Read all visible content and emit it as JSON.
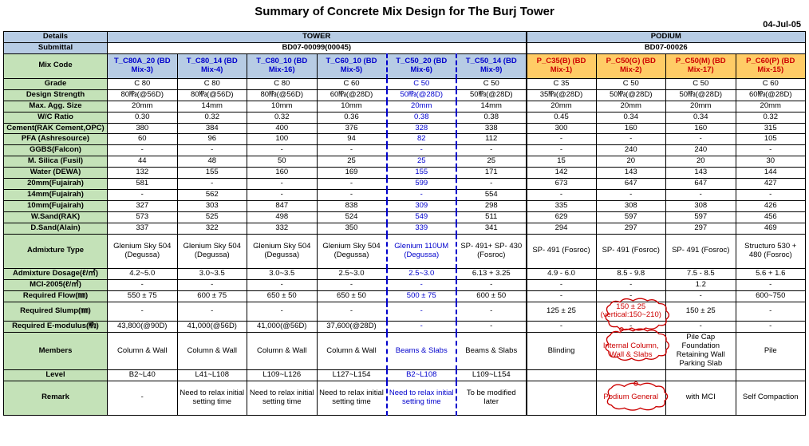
{
  "title": "Summary of Concrete Mix Design for The Burj Tower",
  "date": "04-Jul-05",
  "headers": {
    "details": "Details",
    "tower": "TOWER",
    "podium": "PODIUM",
    "submittal": "Submittal",
    "bd_tower": "BD07-00099(00045)",
    "bd_podium": "BD07-00026",
    "mixcode": "Mix Code"
  },
  "mix": {
    "c0": "T_C80A_20 (BD Mix-3)",
    "c1": "T_C80_14 (BD Mix-4)",
    "c2": "T_C80_10 (BD Mix-16)",
    "c3": "T_C60_10 (BD Mix-5)",
    "c4": "T_C50_20 (BD Mix-6)",
    "c5": "T_C50_14 (BD Mix-9)",
    "c6": "P_C35(B) (BD Mix-1)",
    "c7": "P_C50(G) (BD Mix-2)",
    "c8": "P_C50(M) (BD Mix-17)",
    "c9": "P_C60(P) (BD Mix-15)"
  },
  "rows": {
    "grade": {
      "l": "Grade",
      "v": [
        "C 80",
        "C 80",
        "C 80",
        "C 60",
        "C 50",
        "C 50",
        "C 35",
        "C 50",
        "C 50",
        "C 60"
      ]
    },
    "ds": {
      "l": "Design Strength",
      "v": [
        "80㎫(@56D)",
        "80㎫(@56D)",
        "80㎫(@56D)",
        "60㎫(@28D)",
        "50㎫(@28D)",
        "50㎫(@28D)",
        "35㎫(@28D)",
        "50㎫(@28D)",
        "50㎫(@28D)",
        "60㎫(@28D)"
      ]
    },
    "agg": {
      "l": "Max. Agg. Size",
      "v": [
        "20mm",
        "14mm",
        "10mm",
        "10mm",
        "20mm",
        "14mm",
        "20mm",
        "20mm",
        "20mm",
        "20mm"
      ]
    },
    "wc": {
      "l": "W/C Ratio",
      "v": [
        "0.30",
        "0.32",
        "0.32",
        "0.36",
        "0.38",
        "0.38",
        "0.45",
        "0.34",
        "0.34",
        "0.32"
      ]
    },
    "cem": {
      "l": "Cement(RAK Cement,OPC)",
      "v": [
        "380",
        "384",
        "400",
        "376",
        "328",
        "338",
        "300",
        "160",
        "160",
        "315"
      ]
    },
    "pfa": {
      "l": "PFA (Ashresource)",
      "v": [
        "60",
        "96",
        "100",
        "94",
        "82",
        "112",
        "-",
        "-",
        "-",
        "105"
      ]
    },
    "ggbs": {
      "l": "GGBS(Falcon)",
      "v": [
        "-",
        "-",
        "-",
        "-",
        "-",
        "-",
        "-",
        "240",
        "240",
        "-"
      ]
    },
    "ms": {
      "l": "M. Silica (Fusil)",
      "v": [
        "44",
        "48",
        "50",
        "25",
        "25",
        "25",
        "15",
        "20",
        "20",
        "30"
      ]
    },
    "water": {
      "l": "Water (DEWA)",
      "v": [
        "132",
        "155",
        "160",
        "169",
        "155",
        "171",
        "142",
        "143",
        "143",
        "144"
      ]
    },
    "a20": {
      "l": "20mm(Fujairah)",
      "v": [
        "581",
        "-",
        "-",
        "-",
        "599",
        "-",
        "673",
        "647",
        "647",
        "427"
      ]
    },
    "a14": {
      "l": "14mm(Fujairah)",
      "v": [
        "-",
        "562",
        "-",
        "-",
        "-",
        "554",
        "-",
        "-",
        "-",
        "-"
      ]
    },
    "a10": {
      "l": "10mm(Fujairah)",
      "v": [
        "327",
        "303",
        "847",
        "838",
        "309",
        "298",
        "335",
        "308",
        "308",
        "426"
      ]
    },
    "ws": {
      "l": "W.Sand(RAK)",
      "v": [
        "573",
        "525",
        "498",
        "524",
        "549",
        "511",
        "629",
        "597",
        "597",
        "456"
      ]
    },
    "dsand": {
      "l": "D.Sand(Alain)",
      "v": [
        "337",
        "322",
        "332",
        "350",
        "339",
        "341",
        "294",
        "297",
        "297",
        "469"
      ]
    },
    "adt": {
      "l": "Admixture Type",
      "v": [
        "Glenium Sky 504 (Degussa)",
        "Glenium Sky 504 (Degussa)",
        "Glenium Sky 504 (Degussa)",
        "Glenium Sky 504 (Degussa)",
        "Glenium 110UM (Degussa)",
        "SP- 491+ SP- 430 (Fosroc)",
        "SP- 491 (Fosroc)",
        "SP- 491 (Fosroc)",
        "SP- 491 (Fosroc)",
        "Structuro 530 + 480 (Fosroc)"
      ]
    },
    "add": {
      "l": "Admixture Dosage(ℓ/㎥)",
      "v": [
        "4.2~5.0",
        "3.0~3.5",
        "3.0~3.5",
        "2.5~3.0",
        "2.5~3.0",
        "6.13 + 3.25",
        "4.9 - 6.0",
        "8.5 - 9.8",
        "7.5 - 8.5",
        "5.6 + 1.6"
      ]
    },
    "mci": {
      "l": "MCI-2005(ℓ/㎥)",
      "v": [
        "-",
        "-",
        "-",
        "-",
        "-",
        "-",
        "-",
        "-",
        "1.2",
        "-"
      ]
    },
    "rf": {
      "l": "Required Flow(㎜)",
      "v": [
        "550 ± 75",
        "600 ± 75",
        "650 ± 50",
        "650 ± 50",
        "500 ± 75",
        "600 ± 50",
        "-",
        "-",
        "-",
        "600~750"
      ]
    },
    "rs": {
      "l": "Required Slump(㎜)",
      "v": [
        "-",
        "-",
        "-",
        "-",
        "-",
        "-",
        "125 ± 25",
        "150 ± 25 (vertical:150~210)",
        "150 ± 25",
        "-"
      ]
    },
    "rem": {
      "l": "Required E-modulus(㎫)",
      "v": [
        "43,800(@90D)",
        "41,000(@56D)",
        "41,000(@56D)",
        "37,600(@28D)",
        "-",
        "-",
        "-",
        "-",
        "-",
        "-"
      ]
    },
    "mem": {
      "l": "Members",
      "v": [
        "Column & Wall",
        "Column & Wall",
        "Column & Wall",
        "Column & Wall",
        "Beams & Slabs",
        "Beams & Slabs",
        "Blinding",
        "Internal Column, Wall & Slabs",
        "Pile Cap Foundation Retaining Wall Parking Slab",
        "Pile"
      ]
    },
    "lvl": {
      "l": "Level",
      "v": [
        "B2~L40",
        "L41~L108",
        "L109~L126",
        "L127~L154",
        "B2~L108",
        "L109~L154",
        "",
        "",
        "",
        ""
      ]
    },
    "rmk": {
      "l": "Remark",
      "v": [
        "-",
        "Need to relax initial setting time",
        "Need to relax initial setting time",
        "Need to relax initial setting time",
        "Need to relax initial setting time",
        "To be modified later",
        "",
        "Podium General",
        "with MCI",
        "Self Compaction"
      ]
    }
  },
  "colors": {
    "label_bg": "#c4e2b8",
    "header_bg": "#b7cce4",
    "orange_bg": "#ffcc66",
    "blue_text": "#0000cc",
    "red_text": "#cc0000"
  }
}
